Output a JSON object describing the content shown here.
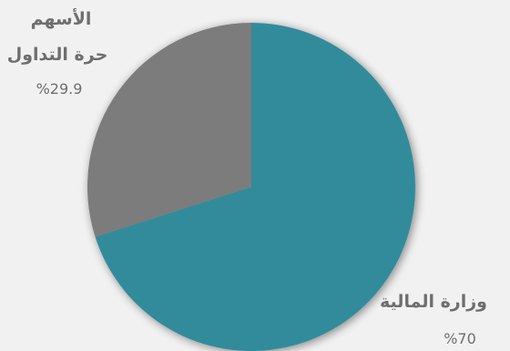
{
  "chart_data": {
    "type": "pie",
    "title": "",
    "slices": [
      {
        "label_lines": [
          "وزارة المالية"
        ],
        "value": 70,
        "value_label": "%70",
        "color": "#328b9b"
      },
      {
        "label_lines": [
          "الأسهم",
          "حرة التداول"
        ],
        "value": 29.9,
        "value_label": "%29.9",
        "color": "#7b7b7b"
      }
    ],
    "start_angle_deg": 0,
    "direction": "clockwise",
    "background": "#f1f1f1"
  }
}
